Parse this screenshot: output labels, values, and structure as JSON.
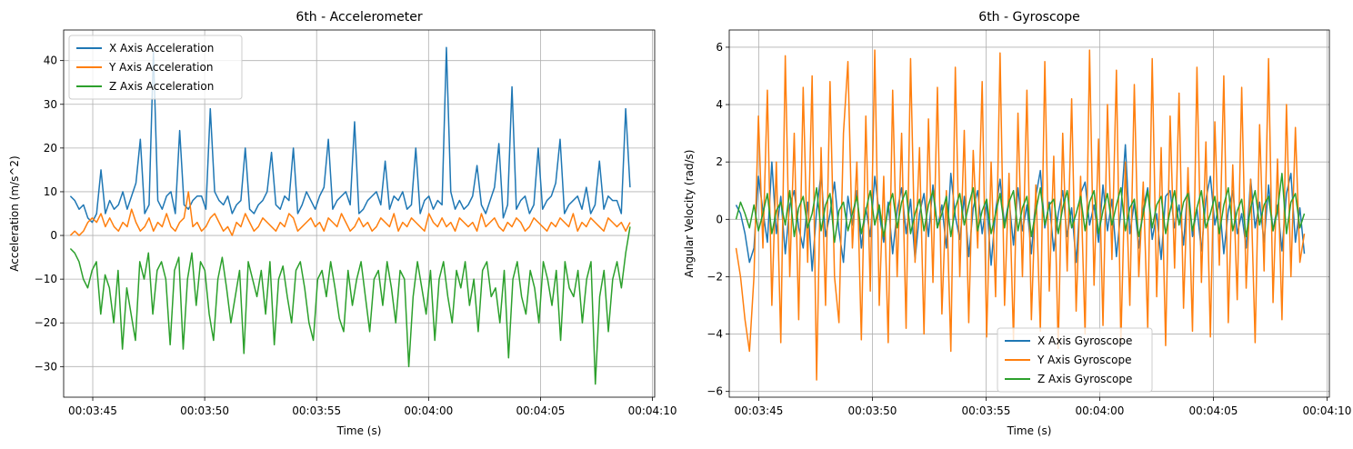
{
  "chart_data": [
    {
      "type": "line",
      "title": "6th - Accelerometer",
      "xlabel": "Time (s)",
      "ylabel": "Acceleration (m/s^2)",
      "xlim": [
        "00:03:43.7",
        "00:04:10.1"
      ],
      "ylim": [
        -37,
        47
      ],
      "x_ticks": [
        "00:03:45",
        "00:03:50",
        "00:03:55",
        "00:04:00",
        "00:04:05",
        "00:04:10"
      ],
      "y_ticks": [
        -30,
        -20,
        -10,
        0,
        10,
        20,
        30,
        40
      ],
      "grid": true,
      "legend_position": "upper-left",
      "x_range": [
        "00:03:44",
        "00:04:09"
      ],
      "series": [
        {
          "name": "X Axis Acceleration",
          "color": "#1f77b4",
          "values": [
            9,
            8,
            6,
            7,
            4,
            3,
            5,
            15,
            5,
            8,
            6,
            7,
            10,
            6,
            9,
            12,
            22,
            5,
            7,
            42,
            8,
            6,
            9,
            10,
            5,
            24,
            7,
            6,
            8,
            9,
            9,
            6,
            29,
            10,
            8,
            7,
            9,
            5,
            7,
            8,
            20,
            6,
            5,
            7,
            8,
            10,
            19,
            7,
            6,
            9,
            8,
            20,
            5,
            7,
            10,
            8,
            6,
            9,
            11,
            22,
            6,
            8,
            9,
            10,
            7,
            26,
            5,
            6,
            8,
            9,
            10,
            7,
            17,
            6,
            9,
            8,
            10,
            6,
            7,
            20,
            5,
            8,
            9,
            6,
            8,
            7,
            43,
            10,
            6,
            8,
            6,
            7,
            9,
            16,
            7,
            5,
            8,
            11,
            21,
            4,
            7,
            34,
            6,
            8,
            9,
            5,
            7,
            20,
            6,
            8,
            9,
            12,
            22,
            5,
            7,
            8,
            9,
            6,
            11,
            5,
            7,
            17,
            6,
            9,
            8,
            8,
            5,
            29,
            11
          ]
        },
        {
          "name": "Y Axis Acceleration",
          "color": "#ff7f0e",
          "values": [
            0,
            1,
            0,
            1,
            3,
            4,
            3,
            5,
            2,
            4,
            2,
            1,
            3,
            2,
            6,
            3,
            1,
            2,
            4,
            1,
            3,
            2,
            5,
            2,
            1,
            3,
            4,
            10,
            2,
            3,
            1,
            2,
            4,
            5,
            3,
            1,
            2,
            0,
            3,
            2,
            5,
            3,
            1,
            2,
            4,
            3,
            2,
            1,
            3,
            2,
            5,
            4,
            1,
            2,
            3,
            4,
            2,
            3,
            1,
            4,
            3,
            2,
            5,
            3,
            1,
            2,
            4,
            2,
            3,
            1,
            2,
            4,
            3,
            2,
            5,
            1,
            3,
            2,
            4,
            3,
            2,
            1,
            5,
            3,
            2,
            4,
            2,
            3,
            1,
            4,
            3,
            2,
            3,
            1,
            5,
            2,
            3,
            4,
            2,
            1,
            3,
            2,
            4,
            3,
            1,
            2,
            4,
            3,
            2,
            1,
            3,
            2,
            4,
            3,
            2,
            5,
            1,
            3,
            2,
            4,
            3,
            2,
            1,
            4,
            3,
            2,
            3,
            1,
            3
          ]
        },
        {
          "name": "Z Axis Acceleration",
          "color": "#2ca02c",
          "values": [
            -3,
            -4,
            -6,
            -10,
            -12,
            -8,
            -6,
            -18,
            -9,
            -12,
            -20,
            -8,
            -26,
            -12,
            -18,
            -24,
            -6,
            -10,
            -4,
            -18,
            -8,
            -6,
            -10,
            -25,
            -8,
            -5,
            -26,
            -10,
            -4,
            -16,
            -6,
            -8,
            -18,
            -24,
            -10,
            -5,
            -12,
            -20,
            -14,
            -8,
            -27,
            -6,
            -10,
            -14,
            -8,
            -18,
            -6,
            -25,
            -10,
            -7,
            -14,
            -20,
            -8,
            -6,
            -12,
            -20,
            -24,
            -10,
            -8,
            -14,
            -6,
            -12,
            -19,
            -22,
            -8,
            -16,
            -10,
            -6,
            -14,
            -22,
            -10,
            -8,
            -16,
            -6,
            -12,
            -20,
            -8,
            -10,
            -30,
            -14,
            -6,
            -12,
            -18,
            -8,
            -24,
            -10,
            -6,
            -14,
            -20,
            -8,
            -12,
            -6,
            -16,
            -10,
            -22,
            -8,
            -6,
            -14,
            -12,
            -20,
            -8,
            -28,
            -10,
            -6,
            -14,
            -18,
            -8,
            -12,
            -20,
            -6,
            -10,
            -16,
            -8,
            -24,
            -6,
            -12,
            -14,
            -8,
            -20,
            -10,
            -6,
            -34,
            -14,
            -8,
            -22,
            -10,
            -6,
            -12,
            -4,
            2
          ]
        }
      ],
      "legend": [
        "X Axis Acceleration",
        "Y Axis Acceleration",
        "Z Axis Acceleration"
      ]
    },
    {
      "type": "line",
      "title": "6th - Gyroscope",
      "xlabel": "Time (s)",
      "ylabel": "Angular Velocity (rad/s)",
      "xlim": [
        "00:03:43.7",
        "00:04:10.1"
      ],
      "ylim": [
        -6.2,
        6.6
      ],
      "x_ticks": [
        "00:03:45",
        "00:03:50",
        "00:03:55",
        "00:04:00",
        "00:04:05",
        "00:04:10"
      ],
      "y_ticks": [
        -6,
        -4,
        -2,
        0,
        2,
        4,
        6
      ],
      "grid": true,
      "legend_position": "lower-center",
      "x_range": [
        "00:03:44",
        "00:04:09"
      ],
      "series": [
        {
          "name": "X Axis Gyroscope",
          "color": "#1f77b4",
          "values": [
            0.5,
            0.2,
            -0.5,
            -1.5,
            -1.0,
            1.5,
            0.3,
            -0.8,
            2.0,
            -0.5,
            0.8,
            -1.2,
            0.5,
            1.0,
            -0.3,
            -1.0,
            0.6,
            -1.8,
            0.3,
            1.6,
            -0.6,
            0.2,
            1.3,
            -0.4,
            -1.5,
            0.8,
            -0.2,
            1.0,
            -1.0,
            0.4,
            -0.6,
            1.5,
            0.2,
            -0.8,
            0.6,
            -1.2,
            0.3,
            1.1,
            -0.5,
            0.7,
            -1.4,
            0.2,
            0.9,
            -0.6,
            1.2,
            -0.3,
            0.5,
            -1.0,
            1.6,
            0.1,
            -0.7,
            0.8,
            -1.3,
            0.4,
            1.0,
            -0.5,
            0.6,
            -1.6,
            0.3,
            1.4,
            -0.2,
            0.7,
            -0.9,
            1.1,
            -0.4,
            0.5,
            -1.2,
            0.8,
            1.7,
            -0.3,
            0.6,
            -1.1,
            0.2,
            1.0,
            -0.6,
            0.4,
            -1.5,
            0.9,
            1.3,
            -0.2,
            0.5,
            -0.8,
            1.2,
            -0.4,
            0.7,
            -1.3,
            0.3,
            2.6,
            -0.5,
            0.6,
            -1.0,
            0.4,
            1.1,
            -0.7,
            0.2,
            -1.4,
            0.8,
            1.0,
            -0.3,
            0.5,
            -0.9,
            1.3,
            -0.6,
            0.4,
            -1.1,
            0.7,
            1.5,
            -0.2,
            0.6,
            -1.2,
            0.3,
            1.0,
            -0.5,
            0.2,
            -1.0,
            1.4,
            -0.3,
            0.6,
            -0.8,
            1.2,
            -0.4,
            0.5,
            -1.1,
            0.9,
            1.6,
            -0.8,
            0.4,
            -1.2
          ]
        },
        {
          "name": "Y Axis Gyroscope",
          "color": "#ff7f0e",
          "values": [
            -1.0,
            -2.0,
            -3.5,
            -4.6,
            -2.0,
            3.6,
            -1.0,
            4.5,
            -3.0,
            2.0,
            -4.3,
            5.7,
            -2.0,
            3.0,
            -3.5,
            4.6,
            -1.5,
            5.0,
            -5.6,
            2.5,
            -3.0,
            4.8,
            -2.0,
            -3.6,
            3.0,
            5.5,
            -1.0,
            2.0,
            -4.2,
            3.6,
            -2.5,
            5.9,
            -3.0,
            1.5,
            -4.3,
            4.5,
            -2.0,
            3.0,
            -3.8,
            5.6,
            -1.5,
            2.5,
            -4.0,
            3.5,
            -2.2,
            4.6,
            -3.3,
            1.0,
            -4.6,
            5.3,
            -2.0,
            3.1,
            -3.6,
            2.4,
            -1.0,
            4.8,
            -4.1,
            2.0,
            -2.7,
            5.8,
            -3.0,
            1.6,
            -4.2,
            3.7,
            -2.0,
            4.5,
            -3.5,
            1.2,
            -3.9,
            5.5,
            -2.5,
            2.2,
            -4.5,
            3.0,
            -1.8,
            4.2,
            -3.2,
            1.5,
            -4.0,
            5.9,
            -2.3,
            2.8,
            -3.7,
            4.0,
            -1.4,
            5.2,
            -4.3,
            2.0,
            -3.0,
            4.7,
            -2.0,
            1.3,
            -3.8,
            5.6,
            -2.7,
            2.5,
            -4.4,
            3.6,
            -1.7,
            4.4,
            -3.1,
            1.8,
            -3.9,
            5.3,
            -2.2,
            2.7,
            -4.1,
            3.4,
            -1.6,
            5.0,
            -3.6,
            1.9,
            -2.8,
            4.6,
            -2.4,
            1.4,
            -4.3,
            3.3,
            -1.8,
            5.6,
            -2.9,
            2.1,
            -3.5,
            4.0,
            -2.0,
            3.2,
            -1.5,
            -0.5
          ]
        },
        {
          "name": "Z Axis Gyroscope",
          "color": "#2ca02c",
          "values": [
            0.0,
            0.6,
            0.2,
            -0.3,
            0.5,
            -0.4,
            0.2,
            0.9,
            -0.5,
            0.3,
            0.6,
            -0.2,
            1.0,
            -0.6,
            0.4,
            0.8,
            -0.3,
            0.2,
            1.1,
            -0.4,
            0.5,
            0.9,
            -0.8,
            0.3,
            0.6,
            -0.4,
            0.2,
            0.8,
            -0.5,
            0.3,
            1.0,
            -0.2,
            0.5,
            -0.6,
            0.4,
            0.9,
            -0.3,
            0.6,
            1.0,
            -0.5,
            0.2,
            0.7,
            -0.4,
            0.5,
            1.0,
            -0.3,
            0.2,
            0.8,
            -0.6,
            0.4,
            0.9,
            -0.2,
            0.5,
            1.1,
            -0.4,
            0.3,
            0.7,
            -0.5,
            0.2,
            0.9,
            -0.3,
            0.6,
            1.0,
            -0.4,
            0.4,
            0.8,
            -0.6,
            0.3,
            1.1,
            -0.2,
            0.5,
            0.7,
            -0.5,
            0.4,
            1.0,
            -0.3,
            0.2,
            0.8,
            -0.4,
            0.6,
            1.0,
            -0.5,
            0.3,
            0.9,
            -0.2,
            0.5,
            1.1,
            -0.4,
            0.4,
            0.7,
            -0.6,
            0.2,
            1.0,
            -0.3,
            0.5,
            0.8,
            -0.5,
            0.3,
            1.0,
            -0.2,
            0.6,
            0.9,
            -0.4,
            0.4,
            1.0,
            -0.3,
            0.2,
            0.8,
            -0.5,
            0.5,
            1.1,
            -0.4,
            0.3,
            0.7,
            -0.6,
            0.4,
            1.0,
            -0.2,
            0.5,
            0.8,
            -0.4,
            0.3,
            1.6,
            -0.5,
            0.6,
            0.9,
            -0.3,
            0.2
          ]
        }
      ],
      "legend": [
        "X Axis Gyroscope",
        "Y Axis Gyroscope",
        "Z Axis Gyroscope"
      ]
    }
  ]
}
